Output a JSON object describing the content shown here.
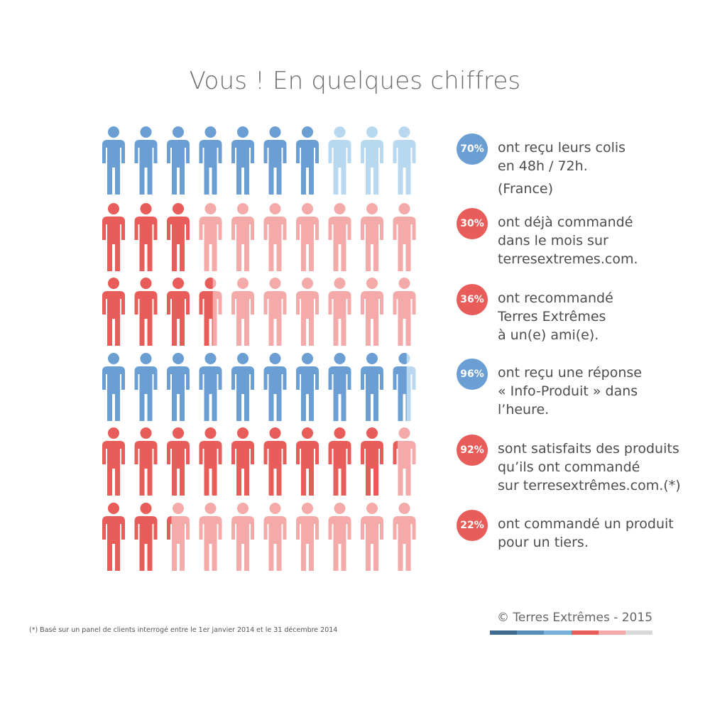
{
  "title": "Vous ! En quelques chiffres",
  "colors": {
    "blue": "#6b9fd4",
    "blue_light": "#b8d8f0",
    "red": "#e85d5a",
    "red_light": "#f3aaa8"
  },
  "chart_data": {
    "type": "pictograph",
    "icon": "person-icon",
    "icons_per_row": 10,
    "rows": [
      {
        "value": 70,
        "color": "blue"
      },
      {
        "value": 30,
        "color": "red"
      },
      {
        "value": 36,
        "color": "red"
      },
      {
        "value": 96,
        "color": "blue"
      },
      {
        "value": 92,
        "color": "red"
      },
      {
        "value": 22,
        "color": "red"
      }
    ]
  },
  "stats": [
    {
      "label": "70%",
      "color": "blue",
      "lines": [
        "ont reçu leurs colis",
        "en 48h / 72h."
      ],
      "note": "(France)"
    },
    {
      "label": "30%",
      "color": "red",
      "lines": [
        "ont déjà commandé",
        "dans le mois sur",
        "terresextremes.com."
      ]
    },
    {
      "label": "36%",
      "color": "red",
      "lines": [
        "ont recommandé",
        "Terres Extrêmes",
        "à un(e) ami(e)."
      ]
    },
    {
      "label": "96%",
      "color": "blue",
      "lines": [
        "ont reçu une réponse",
        "« Info-Produit » dans",
        "l’heure."
      ]
    },
    {
      "label": "92%",
      "color": "red",
      "lines": [
        "sont satisfaits des produits",
        "qu’ils ont commandé",
        "sur terresextrêmes.com.(*)"
      ]
    },
    {
      "label": "22%",
      "color": "red",
      "lines": [
        "ont commandé un produit",
        "pour un tiers."
      ]
    }
  ],
  "footnote": "(*) Basé sur un panel de clients interrogé entre le 1er janvier 2014 et le 31 décembre 2014",
  "copyright": "© Terres Extrêmes - 2015",
  "colorbar": [
    "#3f6a8e",
    "#5b8db9",
    "#7eb0dc",
    "#e85d5a",
    "#f3aaa8",
    "#d9d9d9"
  ]
}
